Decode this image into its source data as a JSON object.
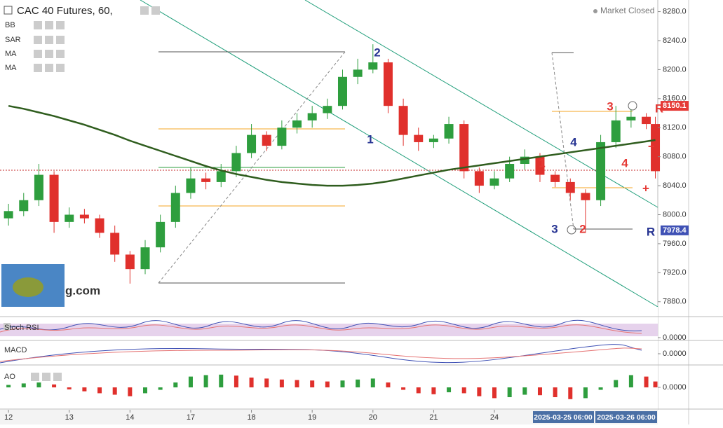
{
  "chart_data": {
    "type": "candlestick",
    "title": "CAC 40 Futures, 60,",
    "status": "Market Closed",
    "indicator_legend": [
      "BB",
      "SAR",
      "MA",
      "MA"
    ],
    "x": [
      0,
      0.25,
      0.5,
      0.75,
      1,
      1.25,
      1.5,
      1.75,
      2,
      2.25,
      2.5,
      2.75,
      3,
      3.25,
      3.5,
      3.75,
      4,
      4.25,
      4.5,
      4.75,
      5,
      5.25,
      5.5,
      5.75,
      6,
      6.25,
      6.5,
      6.75,
      7,
      7.25,
      7.5,
      7.75,
      8,
      8.25,
      8.5,
      8.75,
      9,
      9.25,
      9.5,
      9.75,
      10,
      10.25,
      10.5,
      10.65
    ],
    "open": [
      7995,
      8005,
      8020,
      8055,
      7990,
      8000,
      7995,
      7975,
      7945,
      7925,
      7955,
      7990,
      8030,
      8050,
      8045,
      8060,
      8085,
      8110,
      8095,
      8120,
      8130,
      8140,
      8150,
      8190,
      8200,
      8210,
      8150,
      8110,
      8100,
      8105,
      8125,
      8060,
      8040,
      8050,
      8070,
      8080,
      8055,
      8045,
      8030,
      8020,
      8100,
      8130,
      8135,
      8125
    ],
    "high": [
      8015,
      8030,
      8070,
      8060,
      8010,
      8008,
      8000,
      7985,
      7950,
      7965,
      8000,
      8040,
      8065,
      8058,
      8070,
      8095,
      8125,
      8115,
      8130,
      8140,
      8150,
      8160,
      8200,
      8215,
      8235,
      8215,
      8160,
      8120,
      8110,
      8135,
      8130,
      8065,
      8060,
      8080,
      8090,
      8085,
      8060,
      8050,
      8035,
      8110,
      8150,
      8145,
      8140,
      8135
    ],
    "low": [
      7985,
      7998,
      8012,
      7975,
      7982,
      7988,
      7968,
      7935,
      7905,
      7918,
      7948,
      7982,
      8022,
      8035,
      8038,
      8052,
      8078,
      8088,
      8090,
      8112,
      8120,
      8132,
      8145,
      8180,
      8195,
      8140,
      8095,
      8088,
      8092,
      8098,
      8050,
      8030,
      8035,
      8045,
      8062,
      8045,
      8038,
      8020,
      7975,
      8012,
      8092,
      8120,
      8118,
      8050
    ],
    "close": [
      8005,
      8020,
      8055,
      7990,
      8000,
      7995,
      7975,
      7945,
      7925,
      7955,
      7990,
      8030,
      8050,
      8045,
      8060,
      8085,
      8110,
      8095,
      8120,
      8130,
      8140,
      8150,
      8190,
      8200,
      8210,
      8150,
      8110,
      8100,
      8105,
      8125,
      8060,
      8040,
      8050,
      8070,
      8080,
      8055,
      8045,
      8030,
      8020,
      8100,
      8130,
      8135,
      8125,
      8060
    ],
    "up_color": "#2e9e3e",
    "down_color": "#e0302c",
    "ma": {
      "color": "#2f5d1e",
      "values": [
        8150,
        8146,
        8141,
        8136,
        8130,
        8124,
        8117,
        8110,
        8102,
        8095,
        8088,
        8081,
        8074,
        8067,
        8061,
        8056,
        8052,
        8048,
        8045,
        8043,
        8041,
        8040,
        8040,
        8041,
        8043,
        8046,
        8050,
        8054,
        8058,
        8062,
        8065,
        8068,
        8071,
        8074,
        8077,
        8080,
        8083,
        8086,
        8089,
        8092,
        8095,
        8098,
        8101,
        8103
      ]
    },
    "xlim": [
      -0.14,
      10.69
    ],
    "xticks": [
      {
        "value": 0,
        "label": "12"
      },
      {
        "value": 1,
        "label": "13"
      },
      {
        "value": 2,
        "label": "14"
      },
      {
        "value": 3,
        "label": "17"
      },
      {
        "value": 4,
        "label": "18"
      },
      {
        "value": 5,
        "label": "19"
      },
      {
        "value": 6,
        "label": "20"
      },
      {
        "value": 7,
        "label": "21"
      },
      {
        "value": 8,
        "label": "24"
      }
    ],
    "ylim": [
      7873,
      8296
    ],
    "yticks": [
      {
        "value": 8280,
        "label": "8280.0"
      },
      {
        "value": 8240,
        "label": "8240.0"
      },
      {
        "value": 8200,
        "label": "8200.0"
      },
      {
        "value": 8160,
        "label": "8160.0"
      },
      {
        "value": 8120,
        "label": "8120.0"
      },
      {
        "value": 8080,
        "label": "8080.0"
      },
      {
        "value": 8040,
        "label": "8040.0"
      },
      {
        "value": 8000,
        "label": "8000.0"
      },
      {
        "value": 7960,
        "label": "7960.0"
      },
      {
        "value": 7920,
        "label": "7920.0"
      },
      {
        "value": 7880,
        "label": "7880.0"
      }
    ],
    "price_labels": [
      {
        "value": 8150.1,
        "color": "#e53935"
      },
      {
        "value": 7978.4,
        "color": "#3f51b5"
      }
    ],
    "cursor_labels": [
      "2025-03-25 06:00",
      "2025-03-26 06:00"
    ],
    "annotations": [
      "2",
      "1",
      "1",
      "2",
      "3",
      "4",
      "3",
      "4",
      "R",
      "R",
      "+",
      "−"
    ],
    "watermark": "g.com",
    "panels": [
      {
        "name": "Stoch RSI",
        "yticks": [
          {
            "value": 0,
            "label": "0.0000"
          }
        ]
      },
      {
        "name": "MACD",
        "yticks": [
          {
            "value": 0,
            "label": "0.0000"
          }
        ]
      },
      {
        "name": "AO",
        "yticks": [
          {
            "value": 0,
            "label": "0.0000"
          }
        ],
        "ylim": [
          -40,
          40
        ],
        "up_color": "#2e9e3e",
        "down_color": "#e0302c",
        "values": [
          5,
          8,
          10,
          6,
          -4,
          -8,
          -12,
          -15,
          -18,
          -12,
          -5,
          10,
          22,
          25,
          26,
          24,
          20,
          18,
          16,
          15,
          14,
          12,
          14,
          16,
          18,
          10,
          -5,
          -12,
          -14,
          -10,
          -12,
          -18,
          -22,
          -20,
          -15,
          -16,
          -20,
          -24,
          -22,
          -5,
          15,
          25,
          22,
          12
        ]
      }
    ]
  }
}
